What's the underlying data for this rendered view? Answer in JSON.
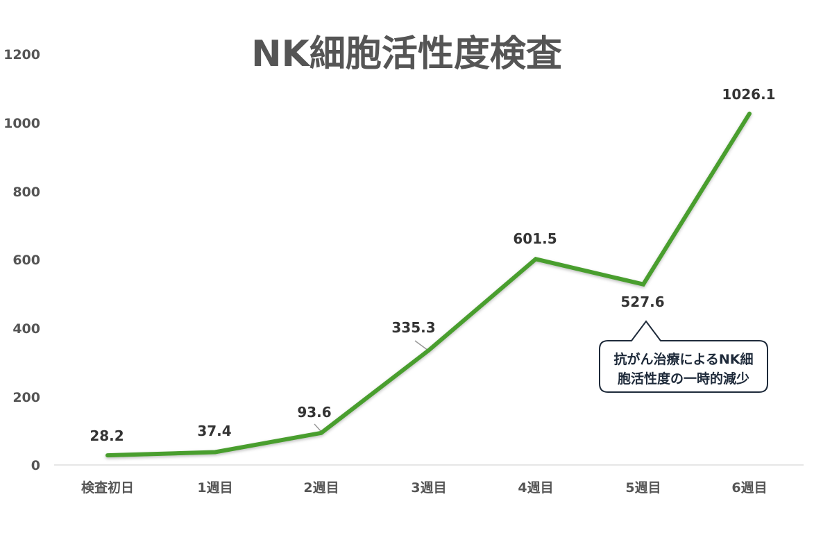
{
  "chart_data": {
    "type": "line",
    "title": "NK細胞活性度検査",
    "xlabel": "",
    "ylabel": "",
    "categories": [
      "検査初日",
      "1週目",
      "2週目",
      "3週目",
      "4週目",
      "5週目",
      "6週目"
    ],
    "series": [
      {
        "name": "NK細胞活性度",
        "values": [
          28.2,
          37.4,
          93.6,
          335.3,
          601.5,
          527.6,
          1026.1
        ],
        "color": "#4a9e2f"
      }
    ],
    "data_labels": [
      "28.2",
      "37.4",
      "93.6",
      "335.3",
      "601.5",
      "527.6",
      "1026.1"
    ],
    "ylim": [
      0,
      1200
    ],
    "yticks": [
      0,
      200,
      400,
      600,
      800,
      1000,
      1200
    ],
    "grid": false,
    "legend": "none",
    "annotations": [
      {
        "text_line1": "抗がん治療によるNK細",
        "text_line2": "胞活性度の一時的減少",
        "points_to": "5週目"
      }
    ]
  },
  "colors": {
    "line": "#4a9e2f",
    "axis": "#e6e6e6",
    "text": "#555555",
    "callout_border": "#1e2a3a"
  }
}
